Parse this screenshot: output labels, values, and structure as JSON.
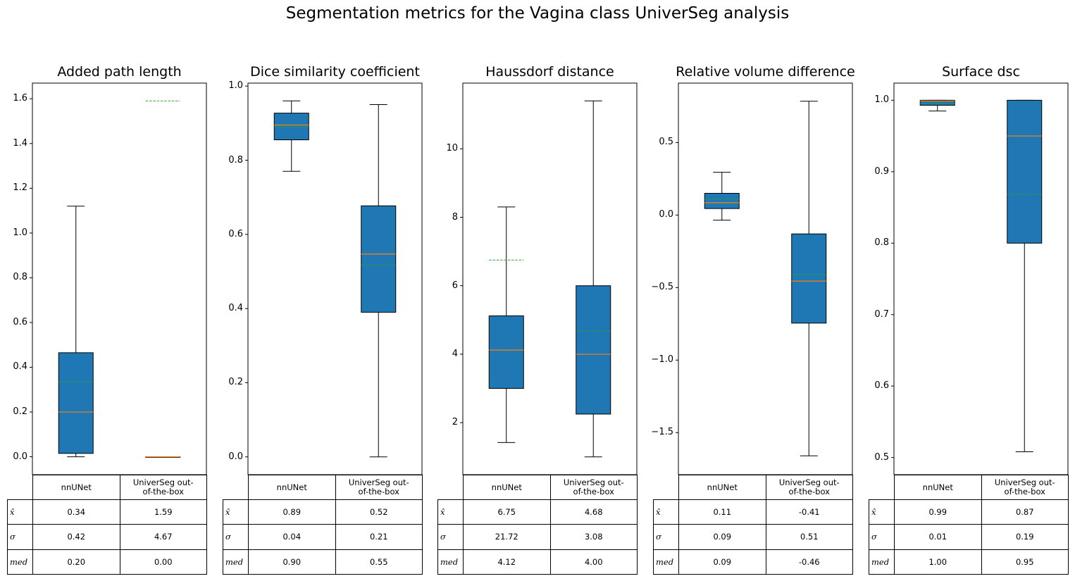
{
  "title": "Segmentation metrics for the Vagina class UniverSeg analysis",
  "chart_data": [
    {
      "type": "box",
      "title": "Added path length",
      "ylim": [
        -0.08,
        1.67
      ],
      "yticks": [
        "0.0",
        "0.2",
        "0.4",
        "0.6",
        "0.8",
        "1.0",
        "1.2",
        "1.4",
        "1.6"
      ],
      "ytick_values": [
        0.0,
        0.2,
        0.4,
        0.6,
        0.8,
        1.0,
        1.2,
        1.4,
        1.6
      ],
      "categories": [
        "nnUNet",
        "UniverSeg out-of-the-box"
      ],
      "boxes": [
        {
          "whislo": 0.0,
          "q1": 0.015,
          "med": 0.2,
          "q3": 0.465,
          "whishi": 1.12,
          "mean": 0.335
        },
        {
          "whislo": 0.0,
          "q1": 0.0,
          "med": 0.0,
          "q3": 0.0,
          "whishi": 0.0,
          "mean": 1.59
        }
      ],
      "table": {
        "col_labels": [
          "nnUNet",
          "UniverSeg out-\nof-the-box"
        ],
        "row_labels": [
          "x̂",
          "σ",
          "med"
        ],
        "cells": [
          [
            "0.34",
            "1.59"
          ],
          [
            "0.42",
            "4.67"
          ],
          [
            "0.20",
            "0.00"
          ]
        ]
      }
    },
    {
      "type": "box",
      "title": "Dice similarity coefficient",
      "ylim": [
        -0.048,
        1.008
      ],
      "yticks": [
        "0.0",
        "0.2",
        "0.4",
        "0.6",
        "0.8",
        "1.0"
      ],
      "ytick_values": [
        0.0,
        0.2,
        0.4,
        0.6,
        0.8,
        1.0
      ],
      "categories": [
        "nnUNet",
        "UniverSeg out-of-the-box"
      ],
      "boxes": [
        {
          "whislo": 0.77,
          "q1": 0.855,
          "med": 0.895,
          "q3": 0.927,
          "whishi": 0.96,
          "mean": 0.89
        },
        {
          "whislo": 0.0,
          "q1": 0.39,
          "med": 0.547,
          "q3": 0.677,
          "whishi": 0.95,
          "mean": 0.517
        }
      ],
      "table": {
        "col_labels": [
          "nnUNet",
          "UniverSeg out-\nof-the-box"
        ],
        "row_labels": [
          "x̂",
          "σ",
          "med"
        ],
        "cells": [
          [
            "0.89",
            "0.52"
          ],
          [
            "0.04",
            "0.21"
          ],
          [
            "0.90",
            "0.55"
          ]
        ]
      }
    },
    {
      "type": "box",
      "title": "Haussdorf distance",
      "ylim": [
        0.48,
        11.92
      ],
      "yticks": [
        "2",
        "4",
        "6",
        "8",
        "10"
      ],
      "ytick_values": [
        2,
        4,
        6,
        8,
        10
      ],
      "categories": [
        "nnUNet",
        "UniverSeg out-of-the-box"
      ],
      "boxes": [
        {
          "whislo": 1.42,
          "q1": 3.0,
          "med": 4.12,
          "q3": 5.12,
          "whishi": 8.3,
          "mean": 6.75
        },
        {
          "whislo": 1.0,
          "q1": 2.25,
          "med": 4.0,
          "q3": 6.0,
          "whishi": 11.4,
          "mean": 4.68
        }
      ],
      "table": {
        "col_labels": [
          "nnUNet",
          "UniverSeg out-\nof-the-box"
        ],
        "row_labels": [
          "x̂",
          "σ",
          "med"
        ],
        "cells": [
          [
            "6.75",
            "4.68"
          ],
          [
            "21.72",
            "3.08"
          ],
          [
            "4.12",
            "4.00"
          ]
        ]
      }
    },
    {
      "type": "box",
      "title": "Relative volume difference",
      "ylim": [
        -1.79,
        0.91
      ],
      "yticks": [
        "−1.5",
        "−1.0",
        "−0.5",
        "0.0",
        "0.5"
      ],
      "ytick_values": [
        -1.5,
        -1.0,
        -0.5,
        0.0,
        0.5
      ],
      "categories": [
        "nnUNet",
        "UniverSeg out-of-the-box"
      ],
      "boxes": [
        {
          "whislo": -0.035,
          "q1": 0.045,
          "med": 0.085,
          "q3": 0.15,
          "whishi": 0.295,
          "mean": 0.11
        },
        {
          "whislo": -1.66,
          "q1": -0.745,
          "med": -0.455,
          "q3": -0.13,
          "whishi": 0.785,
          "mean": -0.41
        }
      ],
      "table": {
        "col_labels": [
          "nnUNet",
          "UniverSeg out-\nof-the-box"
        ],
        "row_labels": [
          "x̂",
          "σ",
          "med"
        ],
        "cells": [
          [
            "0.11",
            "-0.41"
          ],
          [
            "0.09",
            "0.51"
          ],
          [
            "0.09",
            "-0.46"
          ]
        ]
      }
    },
    {
      "type": "box",
      "title": "Surface dsc",
      "ylim": [
        0.476,
        1.024
      ],
      "yticks": [
        "0.5",
        "0.6",
        "0.7",
        "0.8",
        "0.9",
        "1.0"
      ],
      "ytick_values": [
        0.5,
        0.6,
        0.7,
        0.8,
        0.9,
        1.0
      ],
      "categories": [
        "nnUNet",
        "UniverSeg out-of-the-box"
      ],
      "boxes": [
        {
          "whislo": 0.985,
          "q1": 0.993,
          "med": 0.999,
          "q3": 1.0,
          "whishi": 1.0,
          "mean": 0.995
        },
        {
          "whislo": 0.508,
          "q1": 0.8,
          "med": 0.95,
          "q3": 1.0,
          "whishi": 1.0,
          "mean": 0.868
        }
      ],
      "table": {
        "col_labels": [
          "nnUNet",
          "UniverSeg out-\nof-the-box"
        ],
        "row_labels": [
          "x̂",
          "σ",
          "med"
        ],
        "cells": [
          [
            "0.99",
            "0.87"
          ],
          [
            "0.01",
            "0.19"
          ],
          [
            "1.00",
            "0.95"
          ]
        ]
      }
    }
  ],
  "colors": {
    "box_fill": "#1f77b4",
    "median": "#ff7f0e",
    "mean": "#2ca02c",
    "line": "#000000"
  }
}
